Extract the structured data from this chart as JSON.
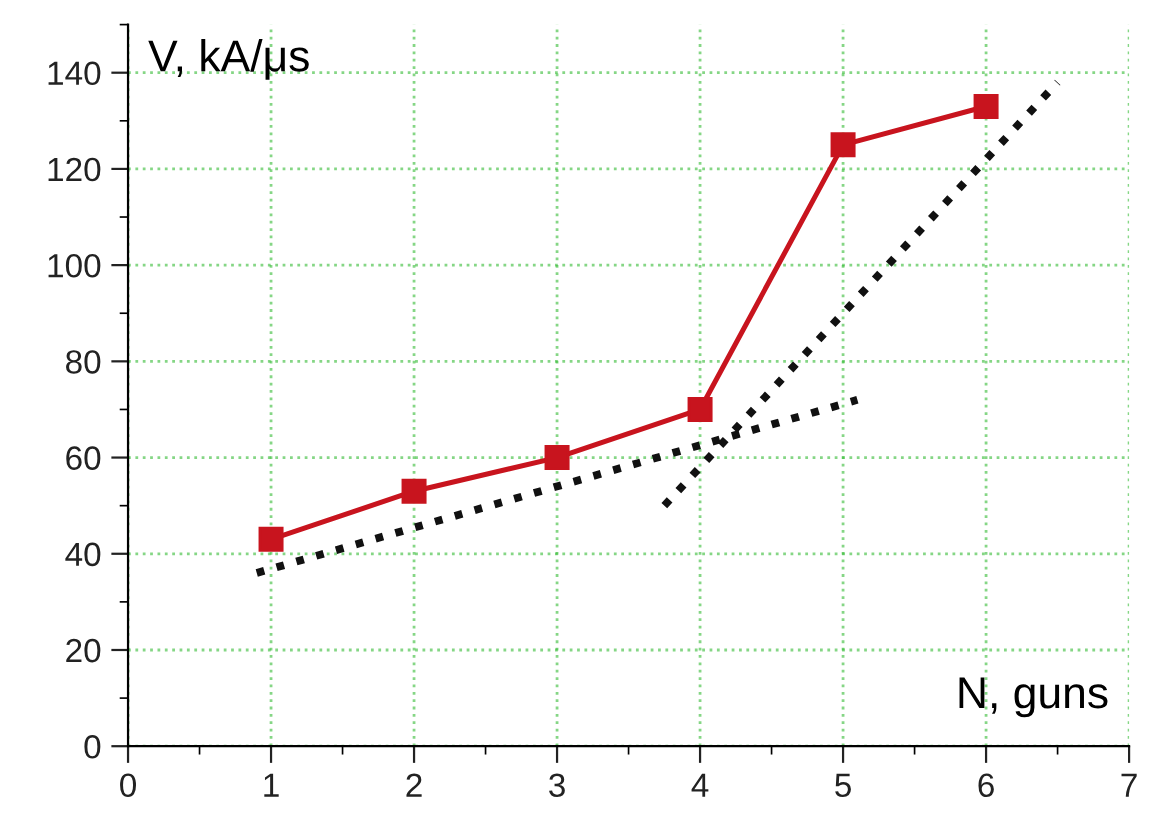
{
  "chart_data": {
    "type": "line",
    "xlabel": "N, guns",
    "ylabel": "V, kA/μs",
    "xlim": [
      0,
      7
    ],
    "xticks": [
      0,
      1,
      2,
      3,
      4,
      5,
      6,
      7
    ],
    "ylim": [
      0,
      150
    ],
    "yticks": [
      0,
      20,
      40,
      60,
      80,
      100,
      120,
      140
    ],
    "grid": true,
    "series": [
      {
        "color": "#c8141e",
        "x": [
          1,
          2,
          3,
          4,
          5,
          6
        ],
        "values": [
          43,
          53,
          60,
          70,
          125,
          133
        ],
        "marker": "square",
        "line_style": "solid"
      },
      {
        "color": "#111111",
        "x": [
          0.9,
          5.1
        ],
        "values": [
          36,
          72
        ],
        "marker": "none",
        "line_style": "dotted"
      },
      {
        "color": "#111111",
        "x": [
          3.75,
          6.5
        ],
        "values": [
          50,
          138
        ],
        "marker": "none",
        "line_style": "dotted"
      }
    ]
  }
}
